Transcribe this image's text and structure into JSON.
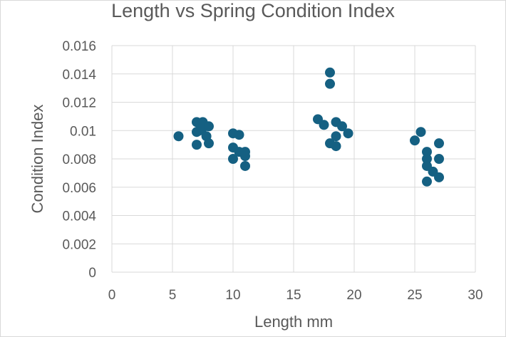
{
  "chart_data": {
    "type": "scatter",
    "title": "Length vs Spring Condition Index",
    "xlabel": "Length mm",
    "ylabel": "Condition Index",
    "xlim": [
      0,
      30
    ],
    "ylim": [
      0,
      0.016
    ],
    "x_ticks": [
      "0",
      "5",
      "10",
      "15",
      "20",
      "25",
      "30"
    ],
    "y_ticks": [
      "0",
      "0.002",
      "0.004",
      "0.006",
      "0.008",
      "0.01",
      "0.012",
      "0.014",
      "0.016"
    ],
    "grid": "vertical and horizontal",
    "marker_color": "#156082",
    "points": [
      [
        5.5,
        0.0096
      ],
      [
        7.0,
        0.0106
      ],
      [
        7.5,
        0.0106
      ],
      [
        7.0,
        0.0099
      ],
      [
        7.2,
        0.01
      ],
      [
        7.5,
        0.0102
      ],
      [
        7.8,
        0.0096
      ],
      [
        8.0,
        0.0103
      ],
      [
        7.0,
        0.009
      ],
      [
        8.0,
        0.0091
      ],
      [
        10.0,
        0.0098
      ],
      [
        10.5,
        0.0097
      ],
      [
        10.0,
        0.0088
      ],
      [
        10.5,
        0.0085
      ],
      [
        10.0,
        0.008
      ],
      [
        11.0,
        0.0085
      ],
      [
        11.0,
        0.0082
      ],
      [
        11.0,
        0.0075
      ],
      [
        17.0,
        0.0108
      ],
      [
        17.5,
        0.0104
      ],
      [
        18.0,
        0.0141
      ],
      [
        18.0,
        0.0133
      ],
      [
        18.5,
        0.0106
      ],
      [
        19.0,
        0.0103
      ],
      [
        19.5,
        0.0098
      ],
      [
        18.5,
        0.0096
      ],
      [
        18.0,
        0.0091
      ],
      [
        18.5,
        0.0089
      ],
      [
        25.0,
        0.0093
      ],
      [
        25.5,
        0.0099
      ],
      [
        26.0,
        0.0085
      ],
      [
        26.0,
        0.008
      ],
      [
        26.0,
        0.0075
      ],
      [
        26.5,
        0.0071
      ],
      [
        27.0,
        0.0091
      ],
      [
        27.0,
        0.008
      ],
      [
        27.0,
        0.0067
      ],
      [
        26.0,
        0.0064
      ]
    ]
  }
}
